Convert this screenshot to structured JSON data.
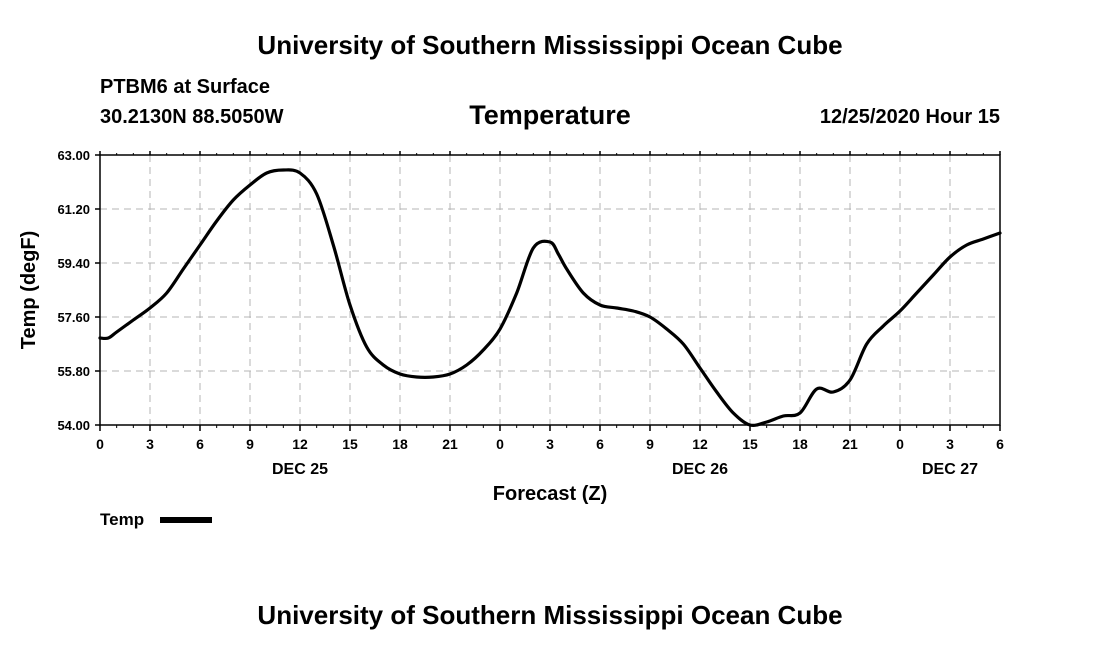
{
  "header": {
    "title": "University of Southern Mississippi Ocean Cube",
    "station": "PTBM6 at Surface",
    "coordinates": "30.2130N 88.5050W",
    "timestamp": "12/25/2020 Hour 15"
  },
  "footer": {
    "title": "University of Southern Mississippi Ocean Cube"
  },
  "chart_data": {
    "type": "line",
    "title": "Temperature",
    "xlabel": "Forecast (Z)",
    "ylabel": "Temp (degF)",
    "xlim": [
      0,
      54
    ],
    "ylim": [
      54.0,
      63.0
    ],
    "y_ticks": [
      "54.00",
      "55.80",
      "57.60",
      "59.40",
      "61.20",
      "63.00"
    ],
    "x_tick_labels": [
      "0",
      "3",
      "6",
      "9",
      "12",
      "15",
      "18",
      "21",
      "0",
      "3",
      "6",
      "9",
      "12",
      "15",
      "18",
      "21",
      "0",
      "3",
      "6"
    ],
    "date_labels": [
      {
        "label": "DEC 25",
        "hour": 12
      },
      {
        "label": "DEC 26",
        "hour": 36
      },
      {
        "label": "DEC 27",
        "hour": 51
      }
    ],
    "grid": true,
    "legend": {
      "position": "bottom-left",
      "entries": [
        "Temp"
      ]
    },
    "series": [
      {
        "name": "Temp",
        "color": "#000000",
        "x": [
          0,
          0.5,
          1,
          2,
          3,
          4,
          5,
          6,
          7,
          8,
          9,
          10,
          11,
          12,
          13,
          14,
          15,
          16,
          17,
          18,
          19,
          20,
          21,
          22,
          23,
          24,
          25,
          26,
          27,
          27.5,
          28,
          29,
          30,
          31,
          32,
          33,
          34,
          35,
          36,
          37,
          38,
          39,
          40,
          41,
          42,
          43,
          44,
          45,
          46,
          47,
          48,
          49,
          50,
          51,
          52,
          53,
          54
        ],
        "y": [
          56.9,
          56.9,
          57.1,
          57.5,
          57.9,
          58.4,
          59.2,
          60.0,
          60.8,
          61.5,
          62.0,
          62.4,
          62.5,
          62.4,
          61.7,
          60.0,
          58.0,
          56.6,
          56.0,
          55.7,
          55.6,
          55.6,
          55.7,
          56.0,
          56.5,
          57.2,
          58.4,
          59.9,
          60.1,
          59.7,
          59.2,
          58.4,
          58.0,
          57.9,
          57.8,
          57.6,
          57.2,
          56.7,
          55.9,
          55.1,
          54.4,
          54.0,
          54.1,
          54.3,
          54.4,
          55.2,
          55.1,
          55.5,
          56.7,
          57.3,
          57.8,
          58.4,
          59.0,
          59.6,
          60.0,
          60.2,
          60.4
        ]
      }
    ]
  }
}
